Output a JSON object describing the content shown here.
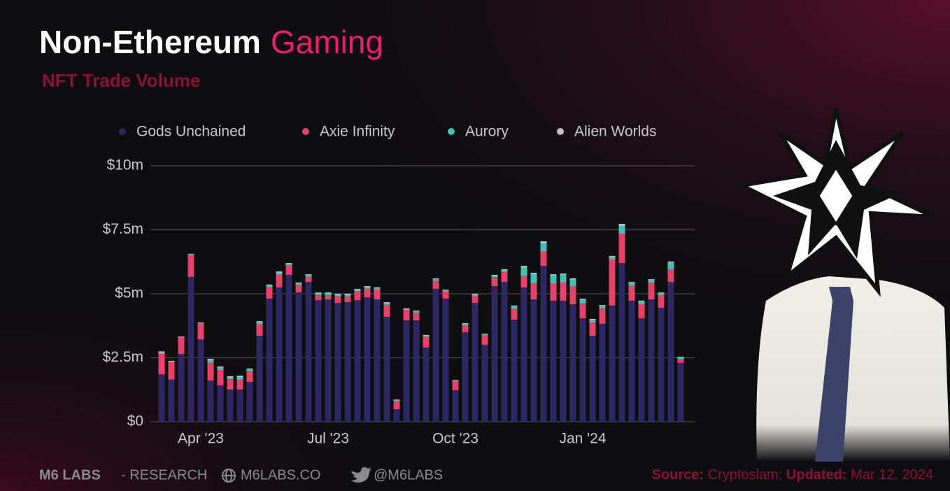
{
  "chart_data": {
    "type": "stacked-bar",
    "title": "Non-Ethereum",
    "title_highlight": "Gaming",
    "subtitle": "NFT Trade Volume",
    "categories": [
      null,
      null,
      null,
      null,
      "Apr '23",
      null,
      null,
      null,
      null,
      null,
      null,
      null,
      null,
      null,
      null,
      null,
      null,
      "Jul '23",
      null,
      null,
      null,
      null,
      null,
      null,
      null,
      null,
      null,
      null,
      null,
      null,
      "Oct '23",
      null,
      null,
      null,
      null,
      null,
      null,
      null,
      null,
      null,
      null,
      null,
      null,
      "Jan '24",
      null,
      null,
      null,
      null,
      null,
      null,
      null,
      null,
      null,
      null
    ],
    "series": [
      {
        "name": "Gods Unchained",
        "color": "#2e2763",
        "values": [
          1.85,
          1.65,
          2.65,
          5.66,
          3.22,
          1.61,
          1.42,
          1.26,
          1.26,
          1.56,
          3.36,
          4.81,
          5.25,
          5.74,
          5.05,
          5.46,
          4.75,
          4.78,
          4.64,
          4.67,
          4.75,
          4.86,
          4.78,
          4.1,
          0.49,
          3.96,
          3.96,
          2.9,
          5.19,
          4.81,
          1.23,
          3.5,
          4.64,
          3.0,
          5.3,
          5.46,
          3.99,
          5.25,
          4.78,
          6.09,
          4.73,
          4.73,
          4.59,
          4.04,
          3.36,
          3.83,
          4.54,
          6.2,
          4.73,
          4.04,
          4.78,
          4.45,
          5.46,
          2.3
        ]
      },
      {
        "name": "Axie Infinity",
        "color": "#e8426b",
        "values": [
          0.8,
          0.68,
          0.63,
          0.85,
          0.62,
          0.7,
          0.6,
          0.4,
          0.38,
          0.42,
          0.45,
          0.45,
          0.5,
          0.38,
          0.3,
          0.2,
          0.2,
          0.17,
          0.26,
          0.23,
          0.34,
          0.34,
          0.37,
          0.47,
          0.33,
          0.4,
          0.3,
          0.42,
          0.33,
          0.27,
          0.37,
          0.27,
          0.28,
          0.37,
          0.35,
          0.4,
          0.42,
          0.44,
          0.64,
          0.56,
          0.68,
          0.72,
          0.7,
          0.58,
          0.52,
          0.6,
          1.8,
          1.15,
          0.58,
          0.55,
          0.65,
          0.5,
          0.5,
          0.14
        ]
      },
      {
        "name": "Aurory",
        "color": "#3ec2b5",
        "values": [
          0.05,
          0.02,
          0.03,
          0.03,
          0.02,
          0.1,
          0.09,
          0.07,
          0.1,
          0.06,
          0.08,
          0.06,
          0.07,
          0.05,
          0.05,
          0.06,
          0.06,
          0.06,
          0.06,
          0.06,
          0.06,
          0.06,
          0.06,
          0.06,
          0.03,
          0.04,
          0.05,
          0.04,
          0.05,
          0.05,
          0.02,
          0.05,
          0.05,
          0.04,
          0.06,
          0.07,
          0.1,
          0.33,
          0.35,
          0.33,
          0.3,
          0.3,
          0.27,
          0.15,
          0.1,
          0.1,
          0.1,
          0.3,
          0.12,
          0.1,
          0.1,
          0.07,
          0.25,
          0.07
        ]
      },
      {
        "name": "Alien Worlds",
        "color": "#b9c5c5",
        "values": [
          0.05,
          0.03,
          0.02,
          0.02,
          0.02,
          0.05,
          0.05,
          0.05,
          0.06,
          0.04,
          0.04,
          0.04,
          0.05,
          0.03,
          0.04,
          0.04,
          0.04,
          0.04,
          0.04,
          0.04,
          0.04,
          0.04,
          0.04,
          0.04,
          0.02,
          0.03,
          0.03,
          0.03,
          0.03,
          0.03,
          0.02,
          0.03,
          0.03,
          0.03,
          0.03,
          0.03,
          0.03,
          0.07,
          0.05,
          0.07,
          0.05,
          0.04,
          0.04,
          0.04,
          0.04,
          0.03,
          0.04,
          0.08,
          0.03,
          0.04,
          0.04,
          0.03,
          0.05,
          0.03
        ]
      }
    ],
    "ylim": [
      0,
      10
    ],
    "yticks": [
      {
        "value": 0,
        "label": "$0"
      },
      {
        "value": 2.5,
        "label": "$2.5m"
      },
      {
        "value": 5,
        "label": "$5m"
      },
      {
        "value": 7.5,
        "label": "$7.5m"
      },
      {
        "value": 10,
        "label": "$10m"
      }
    ],
    "grid": true
  },
  "footer": {
    "brand": "M6 LABS",
    "brand_suffix": "- RESEARCH",
    "website": "M6LABS.CO",
    "twitter": "@M6LABS",
    "source_label": "Source:",
    "source": "Cryptoslam;",
    "updated_label": "Updated:",
    "updated": "Mar 12, 2024"
  }
}
